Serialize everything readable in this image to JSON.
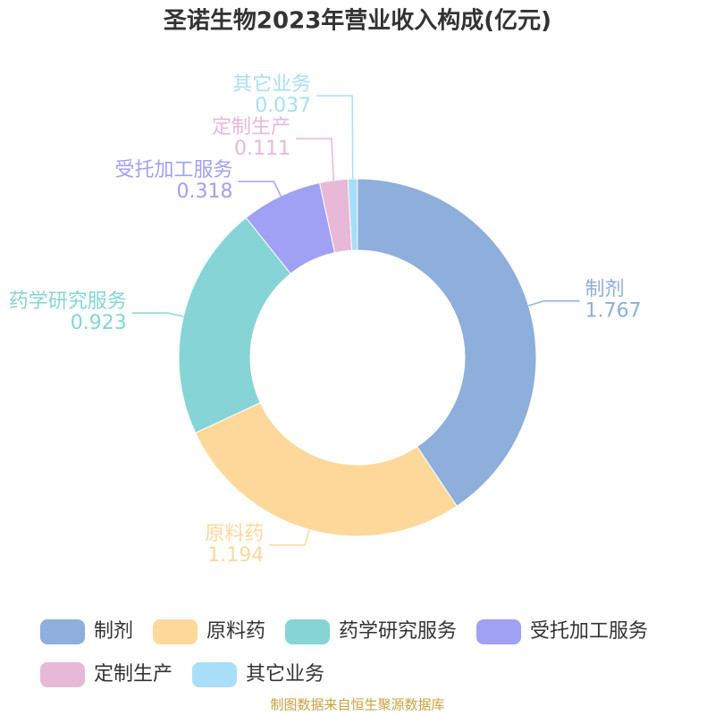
{
  "chart_data": {
    "type": "pie",
    "title": "圣诺生物2023年营业收入构成(亿元)",
    "categories": [
      "制剂",
      "原料药",
      "药学研究服务",
      "受托加工服务",
      "定制生产",
      "其它业务"
    ],
    "values": [
      1.767,
      1.194,
      0.923,
      0.318,
      0.111,
      0.037
    ],
    "colors": [
      "#8eaedc",
      "#fdd89a",
      "#86d4d6",
      "#a0a0f4",
      "#e8b8d8",
      "#a8def8"
    ],
    "legend": "bottom",
    "source": "制图数据来自恒生聚源数据库"
  }
}
